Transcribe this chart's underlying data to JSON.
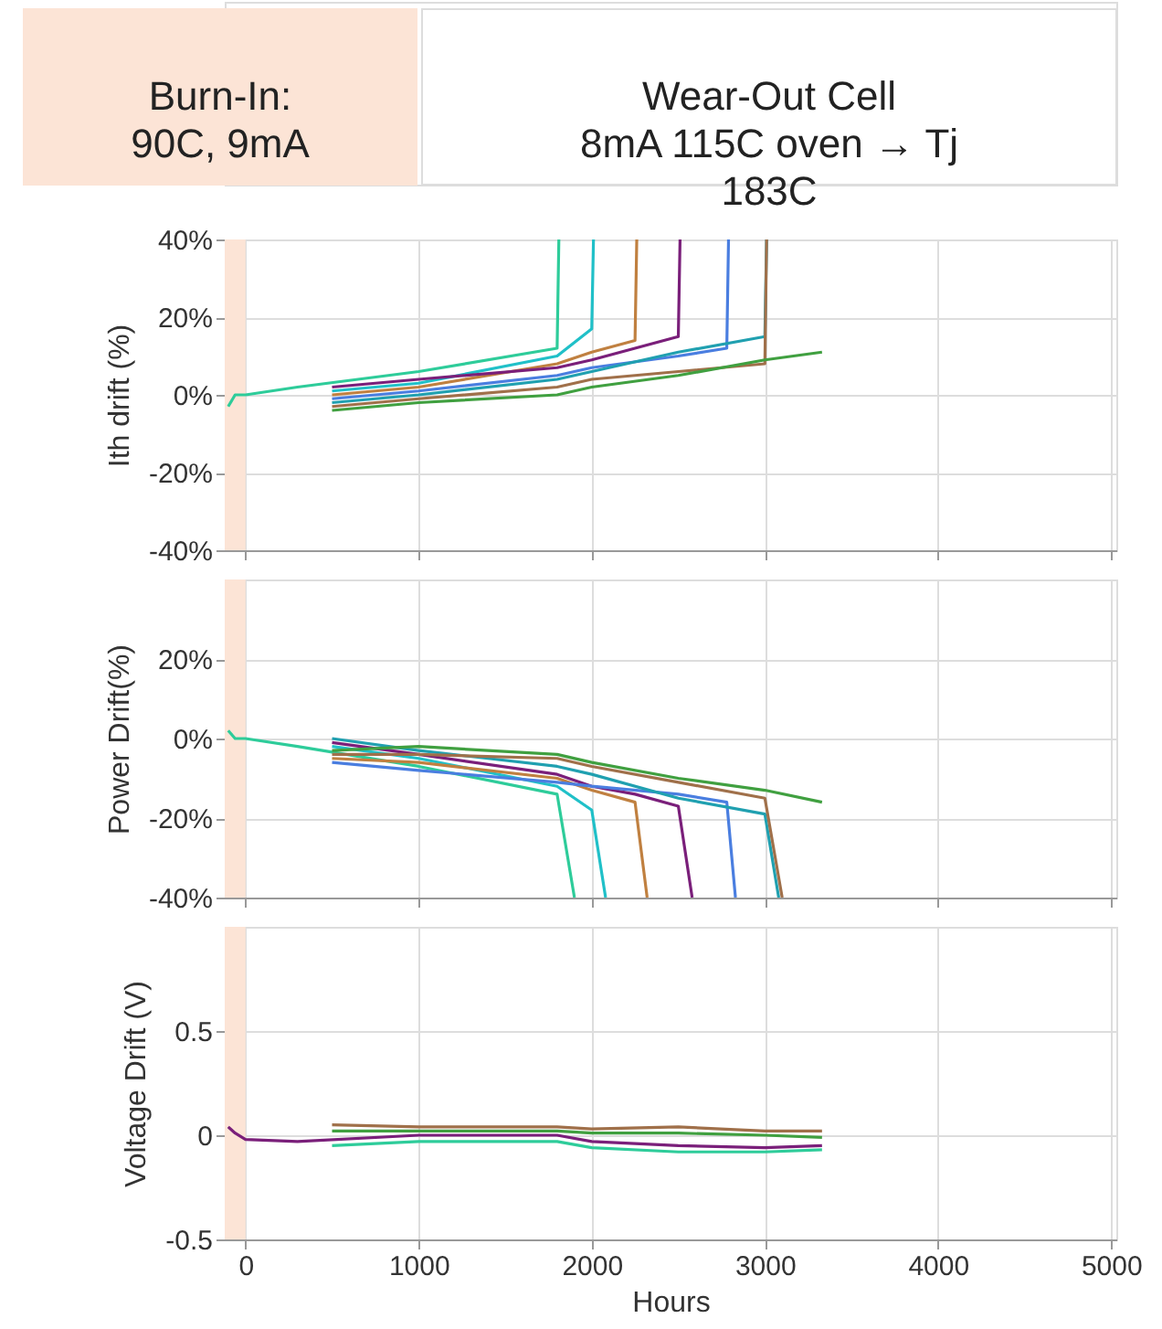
{
  "chart_data": [
    {
      "type": "line",
      "ylabel": "Ith drift (%)",
      "annotations": [
        "Burn-In:\n90C, 9mA",
        "Wear-Out Cell\n8mA 115C oven → Tj\n183C"
      ],
      "xlim": [
        -120,
        5030
      ],
      "xticks": [
        0,
        1000,
        2000,
        3000,
        4000,
        5000
      ],
      "ylim": [
        -40,
        40
      ],
      "yticks": [
        {
          "value": -40,
          "label": "-40%"
        },
        {
          "value": -20,
          "label": "-20%"
        },
        {
          "value": 0,
          "label": "0%"
        },
        {
          "value": 20,
          "label": "20%"
        },
        {
          "value": 40,
          "label": "40%"
        }
      ],
      "tick_labels": "y",
      "grid": true,
      "marker": "none",
      "line_style": "solid",
      "bands": [
        {
          "axis": "x",
          "from": -120,
          "to": 0,
          "color": "#fce4d6"
        }
      ],
      "series": [
        {
          "color": "#2ecc9a",
          "x": [
            -100,
            -60,
            0,
            300,
            1000,
            1800,
            1810
          ],
          "values": [
            -3,
            0,
            0,
            2,
            6,
            12,
            40
          ]
        },
        {
          "color": "#20c0c8",
          "x": [
            500,
            1000,
            1800,
            2000,
            2010
          ],
          "values": [
            1,
            3,
            10,
            17,
            40
          ]
        },
        {
          "color": "#c08040",
          "x": [
            500,
            1000,
            1800,
            2000,
            2250,
            2260
          ],
          "values": [
            0,
            2,
            8,
            11,
            14,
            40
          ]
        },
        {
          "color": "#7a1f7a",
          "x": [
            500,
            1000,
            1800,
            2000,
            2250,
            2500,
            2510
          ],
          "values": [
            2,
            4,
            7,
            9,
            12,
            15,
            40
          ]
        },
        {
          "color": "#4a7ee0",
          "x": [
            500,
            1000,
            1800,
            2000,
            2500,
            2780,
            2790
          ],
          "values": [
            -1,
            1,
            5,
            7,
            10,
            12,
            40
          ]
        },
        {
          "color": "#20a0b0",
          "x": [
            500,
            1000,
            1800,
            2000,
            2500,
            3000,
            3010
          ],
          "values": [
            -2,
            0,
            4,
            6,
            11,
            15,
            40
          ]
        },
        {
          "color": "#a0704a",
          "x": [
            500,
            1000,
            1800,
            2000,
            2500,
            3000,
            3010
          ],
          "values": [
            -3,
            -1,
            2,
            4,
            6,
            8,
            40
          ]
        },
        {
          "color": "#40a040",
          "x": [
            500,
            1000,
            1800,
            2000,
            2500,
            3000,
            3330
          ],
          "values": [
            -4,
            -2,
            0,
            2,
            5,
            9,
            11
          ]
        }
      ]
    },
    {
      "type": "line",
      "ylabel": "Power Drift(%)",
      "xlim": [
        -120,
        5030
      ],
      "xticks": [
        0,
        1000,
        2000,
        3000,
        4000,
        5000
      ],
      "ylim": [
        -40,
        40
      ],
      "yticks": [
        {
          "value": -40,
          "label": "-40%"
        },
        {
          "value": -20,
          "label": "-20%"
        },
        {
          "value": 0,
          "label": "0%"
        },
        {
          "value": 20,
          "label": "20%"
        }
      ],
      "tick_labels": "y",
      "grid": true,
      "marker": "none",
      "line_style": "solid",
      "bands": [
        {
          "axis": "x",
          "from": -120,
          "to": 0,
          "color": "#fce4d6"
        }
      ],
      "series": [
        {
          "color": "#2ecc9a",
          "x": [
            -100,
            -60,
            0,
            300,
            1000,
            1800,
            1900
          ],
          "values": [
            2,
            0,
            0,
            -2,
            -7,
            -14,
            -40
          ]
        },
        {
          "color": "#20c0c8",
          "x": [
            500,
            1000,
            1800,
            2000,
            2080
          ],
          "values": [
            -2,
            -5,
            -12,
            -18,
            -40
          ]
        },
        {
          "color": "#c08040",
          "x": [
            500,
            1000,
            1800,
            2000,
            2250,
            2320
          ],
          "values": [
            -5,
            -6,
            -10,
            -13,
            -16,
            -40
          ]
        },
        {
          "color": "#7a1f7a",
          "x": [
            500,
            1000,
            1800,
            2000,
            2250,
            2500,
            2580
          ],
          "values": [
            -1,
            -4,
            -9,
            -12,
            -14,
            -17,
            -40
          ]
        },
        {
          "color": "#4a7ee0",
          "x": [
            500,
            1000,
            1800,
            2000,
            2500,
            2780,
            2830
          ],
          "values": [
            -6,
            -8,
            -11,
            -12,
            -14,
            -16,
            -40
          ]
        },
        {
          "color": "#20a0b0",
          "x": [
            500,
            1000,
            1800,
            2000,
            2500,
            3000,
            3080
          ],
          "values": [
            0,
            -3,
            -7,
            -9,
            -15,
            -19,
            -40
          ]
        },
        {
          "color": "#a0704a",
          "x": [
            500,
            1000,
            1800,
            2000,
            2500,
            3000,
            3100
          ],
          "values": [
            -4,
            -4,
            -5,
            -7,
            -11,
            -15,
            -40
          ]
        },
        {
          "color": "#40a040",
          "x": [
            500,
            1000,
            1800,
            2000,
            2500,
            3000,
            3330
          ],
          "values": [
            -3,
            -2,
            -4,
            -6,
            -10,
            -13,
            -16
          ]
        }
      ]
    },
    {
      "type": "line",
      "ylabel": "Voltage Drift (V)",
      "xlabel": "Hours",
      "xlim": [
        -120,
        5030
      ],
      "xticks": [
        0,
        1000,
        2000,
        3000,
        4000,
        5000
      ],
      "ylim": [
        -0.5,
        1.0
      ],
      "yticks": [
        -0.5,
        0,
        0.5
      ],
      "grid": true,
      "marker": "none",
      "line_style": "solid",
      "bands": [
        {
          "axis": "x",
          "from": -120,
          "to": 0,
          "color": "#fce4d6"
        }
      ],
      "series": [
        {
          "color": "#7a1f7a",
          "x": [
            -100,
            -60,
            0,
            300,
            1000,
            1800,
            2000,
            2500,
            3000,
            3330
          ],
          "values": [
            0.04,
            0.01,
            -0.02,
            -0.03,
            0,
            0,
            -0.03,
            -0.05,
            -0.06,
            -0.05
          ]
        },
        {
          "color": "#2ecc9a",
          "x": [
            500,
            1000,
            1800,
            2000,
            2500,
            3000,
            3330
          ],
          "values": [
            -0.05,
            -0.03,
            -0.03,
            -0.06,
            -0.08,
            -0.08,
            -0.07
          ]
        },
        {
          "color": "#40a040",
          "x": [
            500,
            1000,
            1800,
            2000,
            2500,
            3000,
            3330
          ],
          "values": [
            0.02,
            0.02,
            0.02,
            0.01,
            0.01,
            0,
            -0.01
          ]
        },
        {
          "color": "#a0704a",
          "x": [
            500,
            1000,
            1800,
            2000,
            2500,
            3000,
            3330
          ],
          "values": [
            0.05,
            0.04,
            0.04,
            0.03,
            0.04,
            0.02,
            0.02
          ]
        }
      ]
    }
  ]
}
